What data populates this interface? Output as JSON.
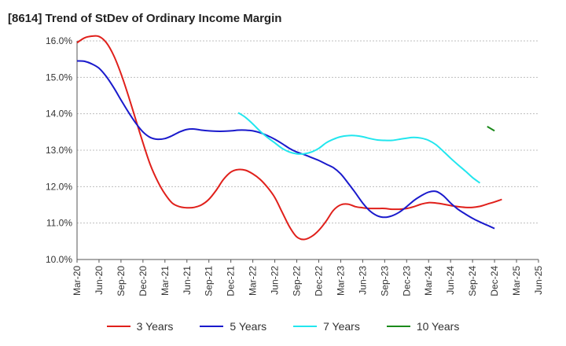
{
  "title": "[8614]  Trend of StDev of Ordinary Income Margin",
  "chart_data": {
    "type": "line",
    "title": "[8614]  Trend of StDev of Ordinary Income Margin",
    "xlabel": "",
    "ylabel": "",
    "ylim": [
      10.0,
      16.0
    ],
    "ytick_labels": [
      "10.0%",
      "11.0%",
      "12.0%",
      "13.0%",
      "14.0%",
      "15.0%",
      "16.0%"
    ],
    "ytick_values": [
      10,
      11,
      12,
      13,
      14,
      15,
      16
    ],
    "xtick_labels": [
      "Mar-20",
      "Jun-20",
      "Sep-20",
      "Dec-20",
      "Mar-21",
      "Jun-21",
      "Sep-21",
      "Dec-21",
      "Mar-22",
      "Jun-22",
      "Sep-22",
      "Dec-22",
      "Mar-23",
      "Jun-23",
      "Sep-23",
      "Dec-23",
      "Mar-24",
      "Jun-24",
      "Sep-24",
      "Dec-24",
      "Mar-25",
      "Jun-25"
    ],
    "grid": "horizontal",
    "legend_position": "bottom",
    "x_start_month": "2020-03",
    "series": [
      {
        "name": "3 Years",
        "color": "#e0201b",
        "points": [
          [
            "2020-03",
            15.95
          ],
          [
            "2020-04",
            16.08
          ],
          [
            "2020-05",
            16.13
          ],
          [
            "2020-06",
            16.12
          ],
          [
            "2020-07",
            15.95
          ],
          [
            "2020-08",
            15.6
          ],
          [
            "2020-09",
            15.1
          ],
          [
            "2020-10",
            14.5
          ],
          [
            "2020-11",
            13.85
          ],
          [
            "2020-12",
            13.2
          ],
          [
            "2021-01",
            12.6
          ],
          [
            "2021-02",
            12.15
          ],
          [
            "2021-03",
            11.8
          ],
          [
            "2021-04",
            11.55
          ],
          [
            "2021-05",
            11.45
          ],
          [
            "2021-06",
            11.42
          ],
          [
            "2021-07",
            11.43
          ],
          [
            "2021-08",
            11.5
          ],
          [
            "2021-09",
            11.65
          ],
          [
            "2021-10",
            11.9
          ],
          [
            "2021-11",
            12.2
          ],
          [
            "2021-12",
            12.4
          ],
          [
            "2022-01",
            12.47
          ],
          [
            "2022-02",
            12.45
          ],
          [
            "2022-03",
            12.35
          ],
          [
            "2022-04",
            12.2
          ],
          [
            "2022-05",
            11.98
          ],
          [
            "2022-06",
            11.7
          ],
          [
            "2022-07",
            11.3
          ],
          [
            "2022-08",
            10.9
          ],
          [
            "2022-09",
            10.62
          ],
          [
            "2022-10",
            10.55
          ],
          [
            "2022-11",
            10.63
          ],
          [
            "2022-12",
            10.8
          ],
          [
            "2023-01",
            11.05
          ],
          [
            "2023-02",
            11.35
          ],
          [
            "2023-03",
            11.5
          ],
          [
            "2023-04",
            11.52
          ],
          [
            "2023-05",
            11.45
          ],
          [
            "2023-06",
            11.42
          ],
          [
            "2023-07",
            11.4
          ],
          [
            "2023-08",
            11.4
          ],
          [
            "2023-09",
            11.4
          ],
          [
            "2023-10",
            11.38
          ],
          [
            "2023-11",
            11.38
          ],
          [
            "2023-12",
            11.4
          ],
          [
            "2024-01",
            11.45
          ],
          [
            "2024-02",
            11.52
          ],
          [
            "2024-03",
            11.56
          ],
          [
            "2024-04",
            11.55
          ],
          [
            "2024-05",
            11.52
          ],
          [
            "2024-06",
            11.48
          ],
          [
            "2024-07",
            11.45
          ],
          [
            "2024-08",
            11.43
          ],
          [
            "2024-09",
            11.43
          ],
          [
            "2024-10",
            11.46
          ],
          [
            "2024-11",
            11.52
          ],
          [
            "2024-12",
            11.58
          ],
          [
            "2025-01",
            11.65
          ]
        ]
      },
      {
        "name": "5 Years",
        "color": "#1a1acc",
        "points": [
          [
            "2020-03",
            15.45
          ],
          [
            "2020-04",
            15.44
          ],
          [
            "2020-05",
            15.37
          ],
          [
            "2020-06",
            15.25
          ],
          [
            "2020-07",
            15.02
          ],
          [
            "2020-08",
            14.72
          ],
          [
            "2020-09",
            14.38
          ],
          [
            "2020-10",
            14.05
          ],
          [
            "2020-11",
            13.75
          ],
          [
            "2020-12",
            13.5
          ],
          [
            "2021-01",
            13.35
          ],
          [
            "2021-02",
            13.3
          ],
          [
            "2021-03",
            13.32
          ],
          [
            "2021-04",
            13.4
          ],
          [
            "2021-05",
            13.5
          ],
          [
            "2021-06",
            13.57
          ],
          [
            "2021-07",
            13.58
          ],
          [
            "2021-08",
            13.55
          ],
          [
            "2021-09",
            13.53
          ],
          [
            "2021-10",
            13.52
          ],
          [
            "2021-11",
            13.52
          ],
          [
            "2021-12",
            13.53
          ],
          [
            "2022-01",
            13.55
          ],
          [
            "2022-02",
            13.55
          ],
          [
            "2022-03",
            13.53
          ],
          [
            "2022-04",
            13.48
          ],
          [
            "2022-05",
            13.4
          ],
          [
            "2022-06",
            13.3
          ],
          [
            "2022-07",
            13.18
          ],
          [
            "2022-08",
            13.05
          ],
          [
            "2022-09",
            12.95
          ],
          [
            "2022-10",
            12.88
          ],
          [
            "2022-11",
            12.8
          ],
          [
            "2022-12",
            12.72
          ],
          [
            "2023-01",
            12.62
          ],
          [
            "2023-02",
            12.52
          ],
          [
            "2023-03",
            12.35
          ],
          [
            "2023-04",
            12.1
          ],
          [
            "2023-05",
            11.83
          ],
          [
            "2023-06",
            11.55
          ],
          [
            "2023-07",
            11.33
          ],
          [
            "2023-08",
            11.2
          ],
          [
            "2023-09",
            11.16
          ],
          [
            "2023-10",
            11.2
          ],
          [
            "2023-11",
            11.3
          ],
          [
            "2023-12",
            11.45
          ],
          [
            "2024-01",
            11.62
          ],
          [
            "2024-02",
            11.75
          ],
          [
            "2024-03",
            11.85
          ],
          [
            "2024-04",
            11.87
          ],
          [
            "2024-05",
            11.75
          ],
          [
            "2024-06",
            11.55
          ],
          [
            "2024-07",
            11.38
          ],
          [
            "2024-08",
            11.25
          ],
          [
            "2024-09",
            11.13
          ],
          [
            "2024-10",
            11.03
          ],
          [
            "2024-11",
            10.94
          ],
          [
            "2024-12",
            10.85
          ]
        ]
      },
      {
        "name": "7 Years",
        "color": "#22e6ee",
        "points": [
          [
            "2022-01",
            14.03
          ],
          [
            "2022-02",
            13.9
          ],
          [
            "2022-03",
            13.72
          ],
          [
            "2022-04",
            13.52
          ],
          [
            "2022-05",
            13.35
          ],
          [
            "2022-06",
            13.2
          ],
          [
            "2022-07",
            13.05
          ],
          [
            "2022-08",
            12.95
          ],
          [
            "2022-09",
            12.9
          ],
          [
            "2022-10",
            12.9
          ],
          [
            "2022-11",
            12.95
          ],
          [
            "2022-12",
            13.05
          ],
          [
            "2023-01",
            13.2
          ],
          [
            "2023-02",
            13.3
          ],
          [
            "2023-03",
            13.37
          ],
          [
            "2023-04",
            13.4
          ],
          [
            "2023-05",
            13.4
          ],
          [
            "2023-06",
            13.37
          ],
          [
            "2023-07",
            13.32
          ],
          [
            "2023-08",
            13.28
          ],
          [
            "2023-09",
            13.27
          ],
          [
            "2023-10",
            13.27
          ],
          [
            "2023-11",
            13.3
          ],
          [
            "2023-12",
            13.33
          ],
          [
            "2024-01",
            13.35
          ],
          [
            "2024-02",
            13.33
          ],
          [
            "2024-03",
            13.27
          ],
          [
            "2024-04",
            13.15
          ],
          [
            "2024-05",
            12.97
          ],
          [
            "2024-06",
            12.78
          ],
          [
            "2024-07",
            12.6
          ],
          [
            "2024-08",
            12.43
          ],
          [
            "2024-09",
            12.25
          ],
          [
            "2024-10",
            12.1
          ]
        ]
      },
      {
        "name": "10 Years",
        "color": "#1b8a1b",
        "points": [
          [
            "2024-11",
            13.65
          ],
          [
            "2024-12",
            13.53
          ]
        ]
      }
    ]
  }
}
